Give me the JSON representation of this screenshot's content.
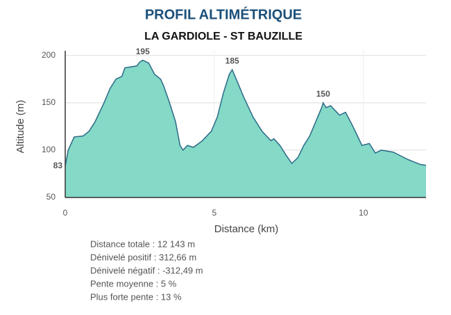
{
  "chart_data": {
    "type": "area",
    "title": "PROFIL ALTIMÉTRIQUE",
    "subtitle": "LA GARDIOLE - ST BAUZILLE",
    "x_label": "Distance (km)",
    "y_label": "Altitude (m)",
    "x": [
      0,
      0.1,
      0.3,
      0.6,
      0.8,
      1.0,
      1.3,
      1.5,
      1.7,
      1.9,
      2.0,
      2.4,
      2.5,
      2.6,
      2.8,
      3.0,
      3.2,
      3.3,
      3.5,
      3.7,
      3.85,
      3.95,
      4.1,
      4.3,
      4.6,
      4.9,
      5.1,
      5.3,
      5.5,
      5.6,
      5.8,
      6.0,
      6.3,
      6.6,
      6.9,
      7.0,
      7.2,
      7.4,
      7.6,
      7.8,
      8.0,
      8.2,
      8.4,
      8.6,
      8.65,
      8.75,
      8.9,
      9.05,
      9.2,
      9.4,
      9.6,
      9.8,
      9.95,
      10.2,
      10.4,
      10.6,
      11.0,
      11.5,
      11.9,
      12.1
    ],
    "values": [
      83,
      100,
      114,
      115,
      120,
      130,
      150,
      165,
      175,
      178,
      187,
      189,
      193,
      195,
      192,
      180,
      175,
      168,
      150,
      130,
      105,
      100,
      105,
      103,
      110,
      120,
      135,
      160,
      180,
      185,
      170,
      155,
      135,
      120,
      110,
      112,
      105,
      95,
      86,
      92,
      105,
      115,
      130,
      145,
      150,
      145,
      147,
      142,
      137,
      140,
      128,
      115,
      105,
      107,
      97,
      100,
      98,
      90,
      85,
      84
    ],
    "color": "#84d9c7",
    "line_color": "#2b6a86",
    "xlim": [
      0,
      12.1
    ],
    "ylim": [
      50,
      205
    ],
    "xticks": [
      0,
      5,
      10
    ],
    "yticks": [
      50,
      100,
      150,
      200
    ],
    "grid": true,
    "annotations": [
      {
        "x": 2.6,
        "y": 195
      },
      {
        "x": 5.6,
        "y": 185
      },
      {
        "x": 8.65,
        "y": 150
      },
      {
        "x": 0,
        "y": 83
      }
    ],
    "stats": [
      "Distance totale : 12 143 m",
      "Dénivelé positif : 312,66 m",
      "Dénivelé négatif : -312,49 m",
      "Pente moyenne : 5 %",
      "Plus forte pente : 13 %"
    ]
  }
}
